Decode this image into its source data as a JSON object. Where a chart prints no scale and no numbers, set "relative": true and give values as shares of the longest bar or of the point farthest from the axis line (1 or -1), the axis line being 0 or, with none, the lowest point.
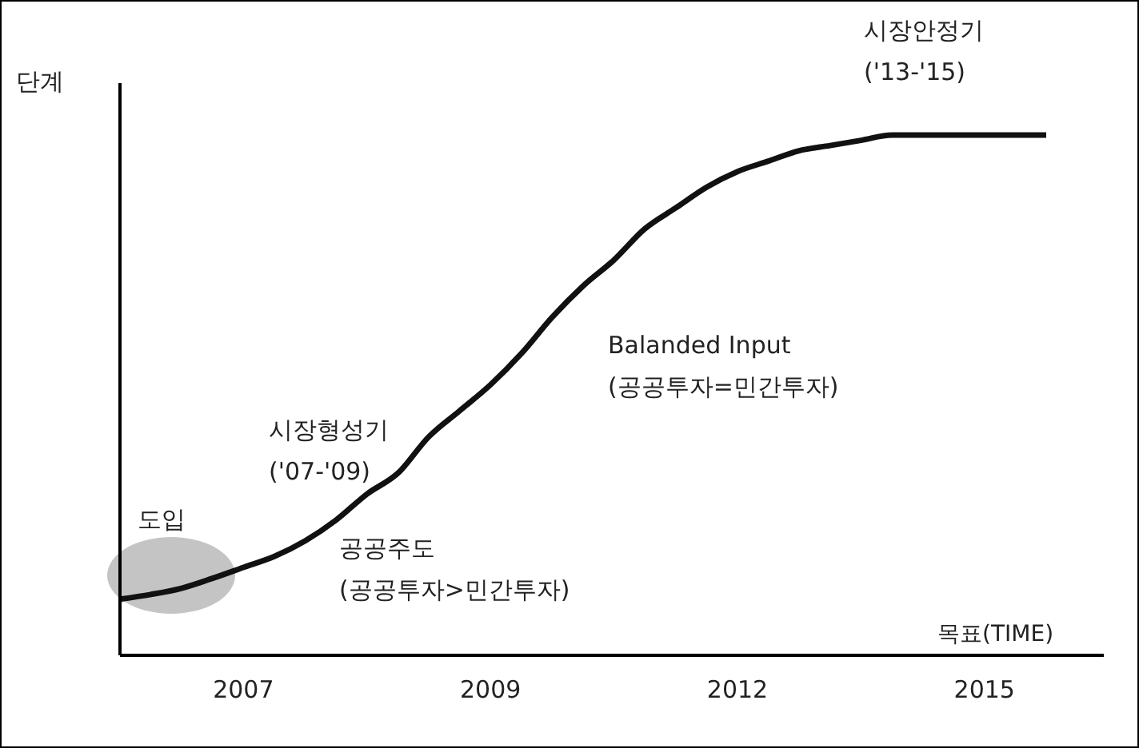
{
  "chart_data": {
    "type": "line",
    "relative": true,
    "ylabel": "단계",
    "xlabel": "목표(TIME)",
    "categories": [
      null,
      null,
      null,
      null,
      "2007",
      null,
      null,
      null,
      null,
      null,
      null,
      null,
      "2009",
      null,
      null,
      null,
      null,
      null,
      null,
      null,
      "2012",
      null,
      null,
      null,
      null,
      null,
      null,
      null,
      "2015",
      null,
      null
    ],
    "series": [
      {
        "color": "#111111",
        "values": [
          0.108,
          0.117,
          0.129,
          0.148,
          0.169,
          0.19,
          0.22,
          0.26,
          0.31,
          0.35,
          0.42,
          0.47,
          0.52,
          0.58,
          0.65,
          0.71,
          0.76,
          0.82,
          0.86,
          0.9,
          0.93,
          0.95,
          0.97,
          0.98,
          0.99,
          1,
          1,
          1,
          1,
          1,
          1
        ]
      }
    ],
    "annotations": [
      "도입",
      "시장형성기\n('07-'09)",
      "공공주도\n(공공투자>민간투자)",
      "Balanded Input\n(공공투자=민간투자)",
      "시장안정기\n('13-'15)"
    ],
    "legend": false,
    "marker": "none",
    "line_style": "solid"
  }
}
